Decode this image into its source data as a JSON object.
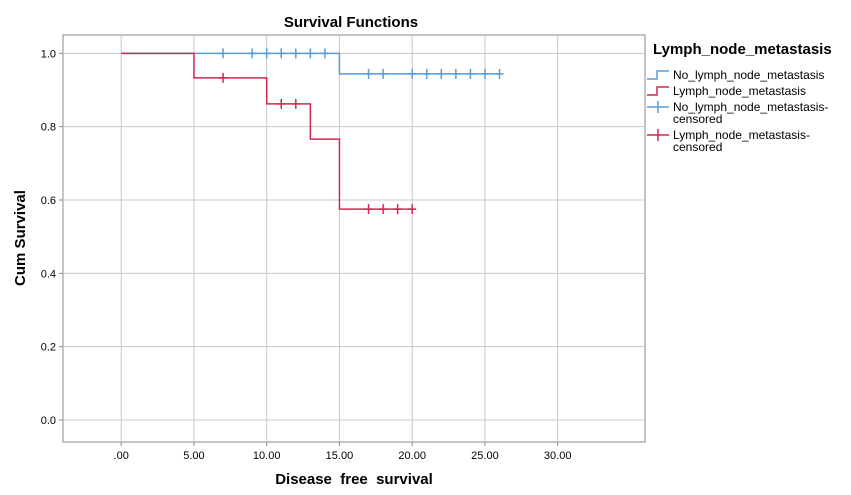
{
  "chart_data": {
    "type": "line",
    "subtype": "kaplan-meier step",
    "title": "Survival Functions",
    "xlabel": "Disease  free  survival",
    "ylabel": "Cum Survival",
    "xlim": [
      -4,
      36
    ],
    "ylim": [
      -0.06,
      1.05
    ],
    "x_ticks": [
      0,
      5,
      10,
      15,
      20,
      25,
      30
    ],
    "x_tick_labels": [
      ".00",
      "5.00",
      "10.00",
      "15.00",
      "20.00",
      "25.00",
      "30.00"
    ],
    "y_ticks": [
      0,
      0.2,
      0.4,
      0.6,
      0.8,
      1.0
    ],
    "y_tick_labels": [
      "0.0",
      "0.2",
      "0.4",
      "0.6",
      "0.8",
      "1.0"
    ],
    "grid": true,
    "legend_title": "Lymph_node_metastasis",
    "legend_position": "right",
    "legend_entries": [
      {
        "label": "No_lymph_node_metastasis",
        "kind": "line",
        "color": "#5B9BD5"
      },
      {
        "label": "Lymph_node_metastasis",
        "kind": "line",
        "color": "#D6264D"
      },
      {
        "label_lines": [
          "No_lymph_node_metastasis-",
          "censored"
        ],
        "kind": "censor",
        "color": "#5B9BD5"
      },
      {
        "label_lines": [
          "Lymph_node_metastasis-",
          "censored"
        ],
        "kind": "censor",
        "color": "#D6264D"
      }
    ],
    "series": [
      {
        "name": "No_lymph_node_metastasis",
        "color": "#5B9BD5",
        "steps": [
          [
            0,
            1.0
          ],
          [
            15,
            0.944
          ],
          [
            26,
            0.944
          ]
        ],
        "censored": [
          [
            7,
            1.0
          ],
          [
            9,
            1.0
          ],
          [
            10,
            1.0
          ],
          [
            11,
            1.0
          ],
          [
            12,
            1.0
          ],
          [
            13,
            1.0
          ],
          [
            14,
            1.0
          ],
          [
            17,
            0.944
          ],
          [
            18,
            0.944
          ],
          [
            20,
            0.944
          ],
          [
            21,
            0.944
          ],
          [
            22,
            0.944
          ],
          [
            23,
            0.944
          ],
          [
            24,
            0.944
          ],
          [
            25,
            0.944
          ],
          [
            26,
            0.944
          ]
        ]
      },
      {
        "name": "Lymph_node_metastasis",
        "color": "#D6264D",
        "steps": [
          [
            0,
            1.0
          ],
          [
            5,
            0.933
          ],
          [
            10,
            0.862
          ],
          [
            13,
            0.766
          ],
          [
            15,
            0.575
          ],
          [
            20,
            0.575
          ]
        ],
        "censored": [
          [
            7,
            0.933
          ],
          [
            11,
            0.862
          ],
          [
            12,
            0.862
          ],
          [
            17,
            0.575
          ],
          [
            18,
            0.575
          ],
          [
            19,
            0.575
          ],
          [
            20,
            0.575
          ]
        ]
      }
    ]
  }
}
